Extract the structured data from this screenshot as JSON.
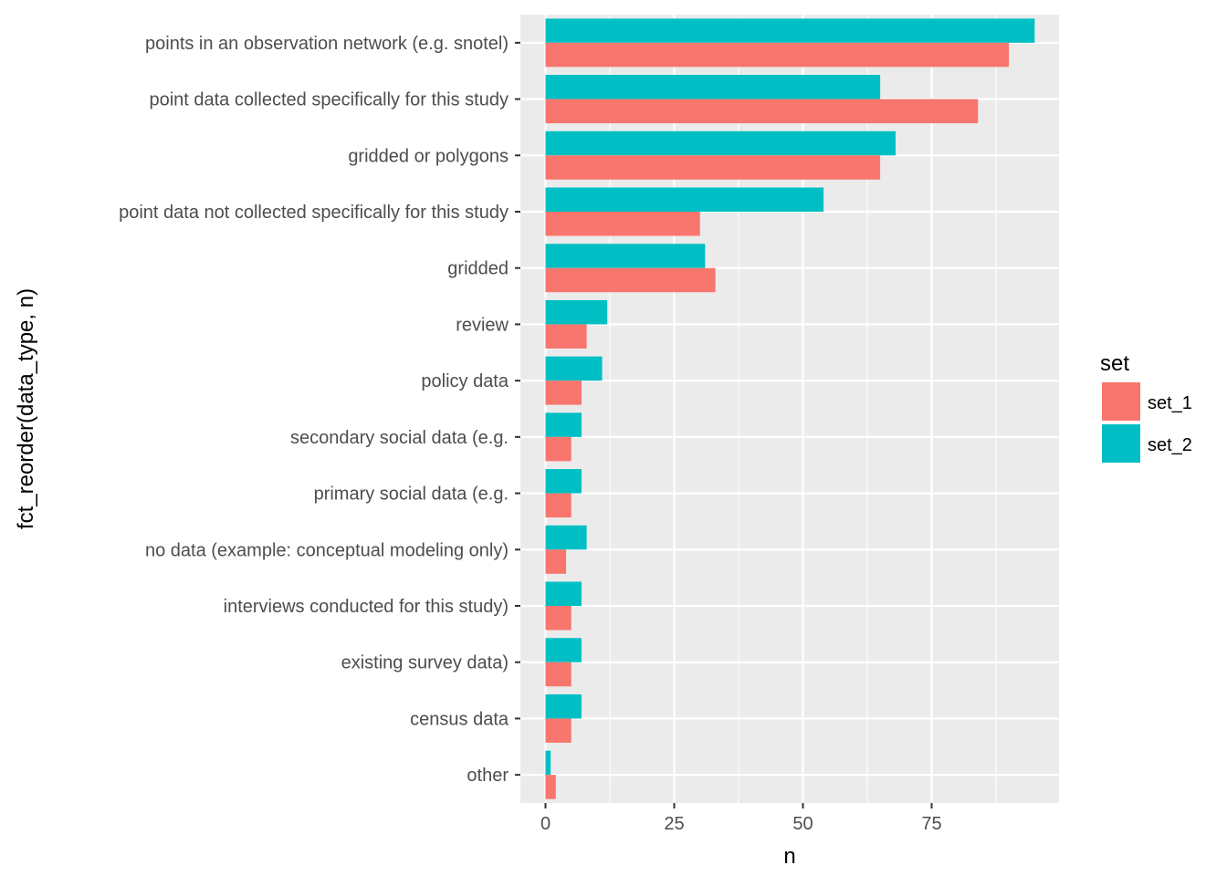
{
  "chart_data": {
    "type": "bar",
    "orientation": "horizontal",
    "xlabel": "n",
    "ylabel": "fct_reorder(data_type, n)",
    "xlim": [
      -5,
      100
    ],
    "x_ticks": [
      0,
      25,
      50,
      75
    ],
    "grid": true,
    "legend": {
      "title": "set",
      "placement": "right"
    },
    "categories": [
      "points in an observation network (e.g. snotel)",
      "point data collected specifically for this study",
      "gridded or polygons",
      "point data not collected specifically for this study",
      "gridded",
      "review",
      "policy data",
      "secondary social data (e.g.",
      "primary social data (e.g.",
      "no data (example: conceptual modeling only)",
      "interviews conducted for this study)",
      "existing survey data)",
      "census data",
      "other"
    ],
    "series": [
      {
        "name": "set_1",
        "color": "#F8766D",
        "values": [
          90,
          84,
          65,
          30,
          33,
          8,
          7,
          5,
          5,
          4,
          5,
          5,
          5,
          2
        ]
      },
      {
        "name": "set_2",
        "color": "#00BFC4",
        "values": [
          95,
          65,
          68,
          54,
          31,
          12,
          11,
          7,
          7,
          8,
          7,
          7,
          7,
          1
        ]
      }
    ]
  }
}
